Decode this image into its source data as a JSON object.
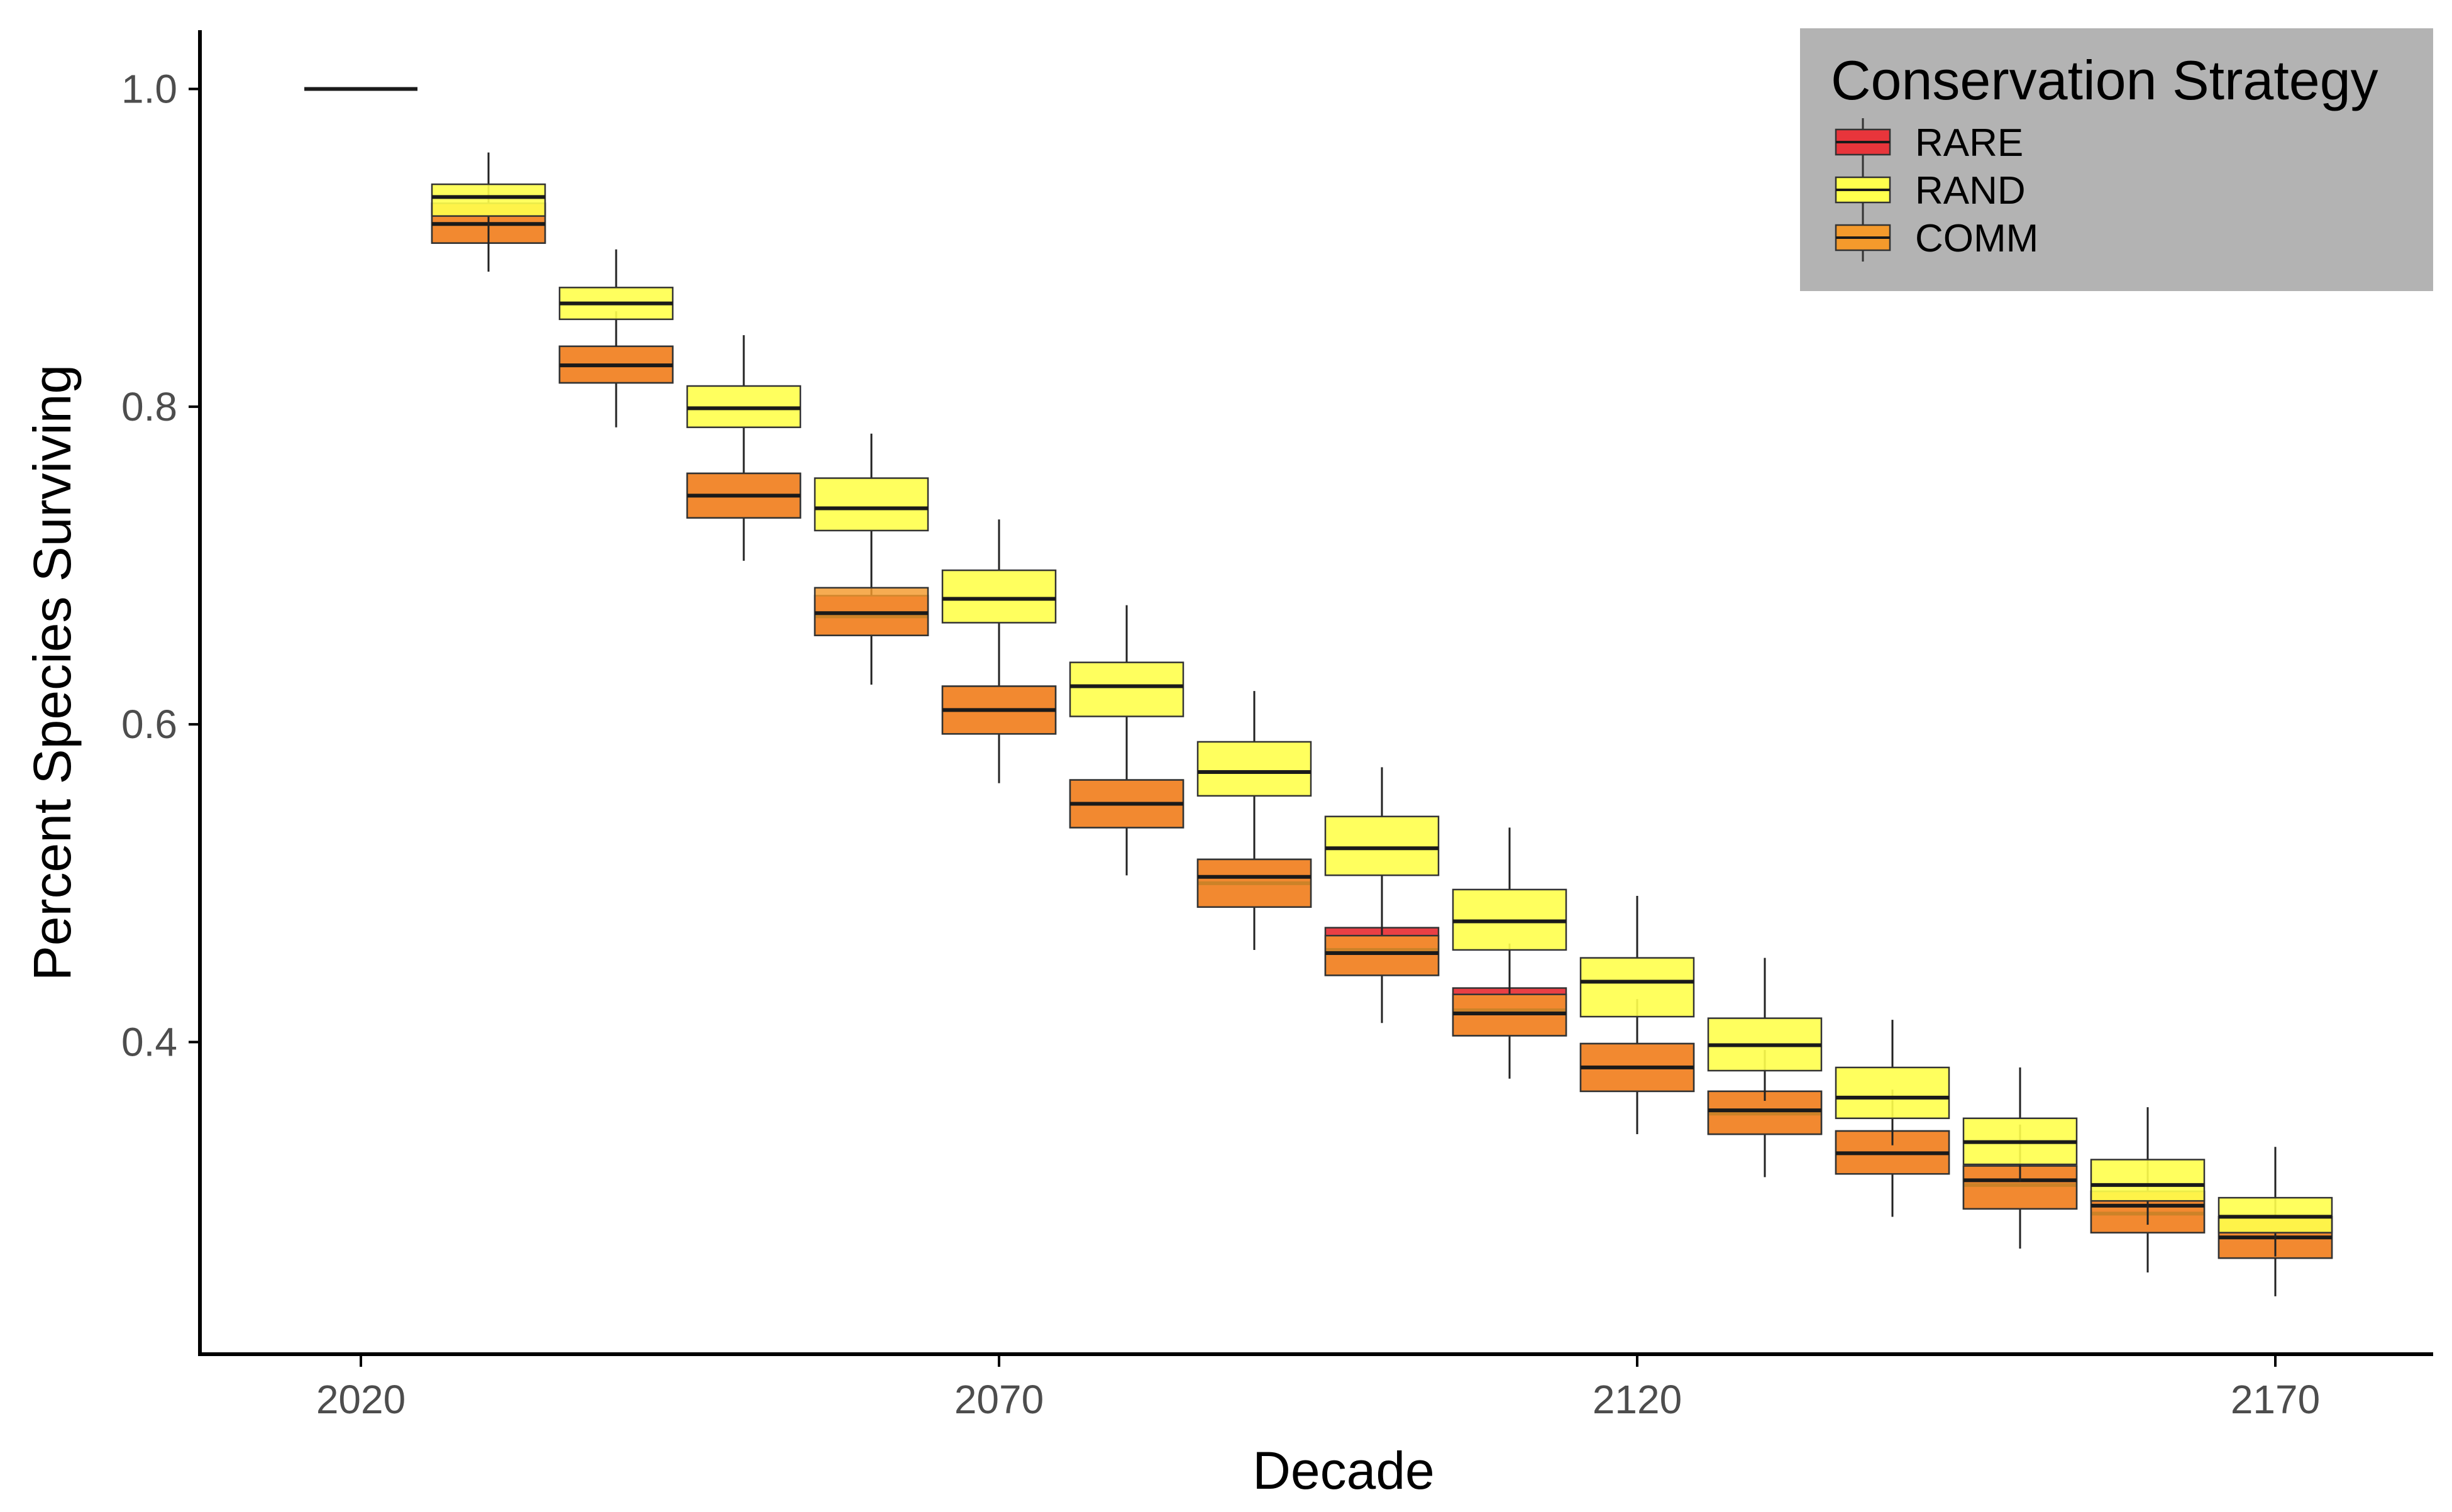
{
  "chart_data": {
    "type": "boxplot",
    "title": "",
    "xlabel": "Decade",
    "ylabel": "Percent Species Surviving",
    "x_ticks": [
      "2020",
      "2070",
      "2120",
      "2170"
    ],
    "y_ticks": [
      "0.4",
      "0.6",
      "0.8",
      "1.0"
    ],
    "ylim": [
      0.22,
      1.04
    ],
    "grid": false,
    "legend": {
      "title": "Conservation Strategy",
      "position": "top-right",
      "entries": [
        {
          "name": "RARE",
          "color": "#e8353b"
        },
        {
          "name": "RAND",
          "color": "#ffff4d"
        },
        {
          "name": "COMM",
          "color": "#f49a2c"
        }
      ]
    },
    "categories": [
      "2020",
      "2030",
      "2040",
      "2050",
      "2060",
      "2070",
      "2080",
      "2090",
      "2100",
      "2110",
      "2120",
      "2130",
      "2140",
      "2150",
      "2160",
      "2170"
    ],
    "series": [
      {
        "name": "RARE",
        "color": "#e8353b",
        "boxes": [
          {
            "min": 1.0,
            "q1": 1.0,
            "median": 1.0,
            "q3": 1.0,
            "max": 1.0
          },
          {
            "min": 0.885,
            "q1": 0.903,
            "median": 0.915,
            "q3": 0.928,
            "max": 0.95
          },
          {
            "min": 0.787,
            "q1": 0.815,
            "median": 0.826,
            "q3": 0.838,
            "max": 0.86
          },
          {
            "min": 0.703,
            "q1": 0.73,
            "median": 0.744,
            "q3": 0.758,
            "max": 0.785
          },
          {
            "min": 0.625,
            "q1": 0.656,
            "median": 0.668,
            "q3": 0.681,
            "max": 0.708
          },
          {
            "min": 0.563,
            "q1": 0.594,
            "median": 0.609,
            "q3": 0.624,
            "max": 0.655
          },
          {
            "min": 0.505,
            "q1": 0.535,
            "median": 0.55,
            "q3": 0.565,
            "max": 0.595
          },
          {
            "min": 0.458,
            "q1": 0.485,
            "median": 0.5,
            "q3": 0.515,
            "max": 0.541
          },
          {
            "min": 0.412,
            "q1": 0.442,
            "median": 0.458,
            "q3": 0.472,
            "max": 0.5
          },
          {
            "min": 0.377,
            "q1": 0.404,
            "median": 0.42,
            "q3": 0.434,
            "max": 0.462
          },
          {
            "min": 0.342,
            "q1": 0.369,
            "median": 0.384,
            "q3": 0.399,
            "max": 0.427
          },
          {
            "min": 0.315,
            "q1": 0.342,
            "median": 0.355,
            "q3": 0.369,
            "max": 0.395
          },
          {
            "min": 0.29,
            "q1": 0.317,
            "median": 0.33,
            "q3": 0.344,
            "max": 0.37
          },
          {
            "min": 0.27,
            "q1": 0.295,
            "median": 0.31,
            "q3": 0.322,
            "max": 0.348
          },
          {
            "min": 0.255,
            "q1": 0.28,
            "median": 0.292,
            "q3": 0.306,
            "max": 0.33
          },
          {
            "min": 0.24,
            "q1": 0.264,
            "median": 0.277,
            "q3": 0.29,
            "max": 0.312
          }
        ]
      },
      {
        "name": "RAND",
        "color": "#ffff4d",
        "boxes": [
          {
            "min": 1.0,
            "q1": 1.0,
            "median": 1.0,
            "q3": 1.0,
            "max": 1.0
          },
          {
            "min": 0.902,
            "q1": 0.92,
            "median": 0.932,
            "q3": 0.94,
            "max": 0.96
          },
          {
            "min": 0.838,
            "q1": 0.855,
            "median": 0.865,
            "q3": 0.875,
            "max": 0.899
          },
          {
            "min": 0.77,
            "q1": 0.787,
            "median": 0.799,
            "q3": 0.813,
            "max": 0.845
          },
          {
            "min": 0.703,
            "q1": 0.722,
            "median": 0.736,
            "q3": 0.755,
            "max": 0.783
          },
          {
            "min": 0.645,
            "q1": 0.664,
            "median": 0.679,
            "q3": 0.697,
            "max": 0.729
          },
          {
            "min": 0.585,
            "q1": 0.605,
            "median": 0.624,
            "q3": 0.639,
            "max": 0.675
          },
          {
            "min": 0.535,
            "q1": 0.555,
            "median": 0.57,
            "q3": 0.589,
            "max": 0.621
          },
          {
            "min": 0.487,
            "q1": 0.505,
            "median": 0.522,
            "q3": 0.542,
            "max": 0.573
          },
          {
            "min": 0.44,
            "q1": 0.458,
            "median": 0.476,
            "q3": 0.496,
            "max": 0.535
          },
          {
            "min": 0.4,
            "q1": 0.416,
            "median": 0.438,
            "q3": 0.453,
            "max": 0.492
          },
          {
            "min": 0.363,
            "q1": 0.382,
            "median": 0.398,
            "q3": 0.415,
            "max": 0.453
          },
          {
            "min": 0.335,
            "q1": 0.352,
            "median": 0.365,
            "q3": 0.384,
            "max": 0.414
          },
          {
            "min": 0.312,
            "q1": 0.323,
            "median": 0.337,
            "q3": 0.352,
            "max": 0.384
          },
          {
            "min": 0.285,
            "q1": 0.3,
            "median": 0.31,
            "q3": 0.326,
            "max": 0.359
          },
          {
            "min": 0.265,
            "q1": 0.28,
            "median": 0.29,
            "q3": 0.302,
            "max": 0.334
          }
        ]
      },
      {
        "name": "COMM",
        "color": "#f49a2c",
        "boxes": [
          {
            "min": 1.0,
            "q1": 1.0,
            "median": 1.0,
            "q3": 1.0,
            "max": 1.0
          },
          {
            "min": 0.885,
            "q1": 0.903,
            "median": 0.915,
            "q3": 0.928,
            "max": 0.95
          },
          {
            "min": 0.787,
            "q1": 0.815,
            "median": 0.826,
            "q3": 0.838,
            "max": 0.86
          },
          {
            "min": 0.703,
            "q1": 0.73,
            "median": 0.744,
            "q3": 0.758,
            "max": 0.785
          },
          {
            "min": 0.625,
            "q1": 0.656,
            "median": 0.67,
            "q3": 0.686,
            "max": 0.708
          },
          {
            "min": 0.563,
            "q1": 0.594,
            "median": 0.609,
            "q3": 0.624,
            "max": 0.655
          },
          {
            "min": 0.505,
            "q1": 0.535,
            "median": 0.55,
            "q3": 0.565,
            "max": 0.595
          },
          {
            "min": 0.458,
            "q1": 0.485,
            "median": 0.504,
            "q3": 0.515,
            "max": 0.541
          },
          {
            "min": 0.412,
            "q1": 0.442,
            "median": 0.456,
            "q3": 0.467,
            "max": 0.5
          },
          {
            "min": 0.377,
            "q1": 0.404,
            "median": 0.418,
            "q3": 0.43,
            "max": 0.462
          },
          {
            "min": 0.342,
            "q1": 0.369,
            "median": 0.384,
            "q3": 0.399,
            "max": 0.427
          },
          {
            "min": 0.315,
            "q1": 0.342,
            "median": 0.357,
            "q3": 0.369,
            "max": 0.395
          },
          {
            "min": 0.29,
            "q1": 0.317,
            "median": 0.33,
            "q3": 0.344,
            "max": 0.37
          },
          {
            "min": 0.27,
            "q1": 0.295,
            "median": 0.313,
            "q3": 0.322,
            "max": 0.348
          },
          {
            "min": 0.255,
            "q1": 0.28,
            "median": 0.297,
            "q3": 0.306,
            "max": 0.33
          },
          {
            "min": 0.24,
            "q1": 0.264,
            "median": 0.277,
            "q3": 0.29,
            "max": 0.312
          }
        ]
      }
    ]
  }
}
